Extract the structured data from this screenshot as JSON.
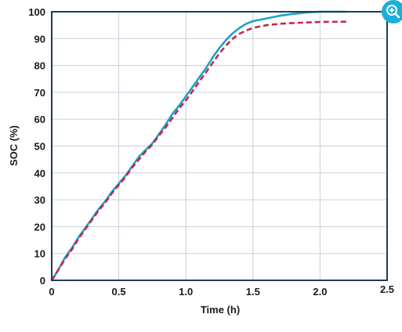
{
  "zoom_button": {
    "icon": "zoom-in-icon",
    "color": "#1ab0d8"
  },
  "chart_data": {
    "type": "line",
    "title": "",
    "xlabel": "Time (h)",
    "ylabel": "SOC (%)",
    "xlim": [
      0,
      2.5
    ],
    "ylim": [
      0,
      100
    ],
    "x_ticks": [
      0,
      0.5,
      1.0,
      1.5,
      2.0,
      2.5
    ],
    "x_tick_labels": [
      "0",
      "0.5",
      "1.0",
      "1.5",
      "2.0",
      "2.5"
    ],
    "y_ticks": [
      0,
      10,
      20,
      30,
      40,
      50,
      60,
      70,
      80,
      90,
      100
    ],
    "y_tick_labels": [
      "0",
      "10",
      "20",
      "30",
      "40",
      "50",
      "60",
      "70",
      "80",
      "90",
      "100"
    ],
    "grid": true,
    "colors": {
      "axis": "#1f3a5f",
      "grid": "#c7d0da"
    },
    "series": [
      {
        "style": "solid",
        "color": "#1ba3c6",
        "points": [
          [
            0,
            0
          ],
          [
            0.05,
            4
          ],
          [
            0.1,
            8.5
          ],
          [
            0.15,
            12
          ],
          [
            0.2,
            16
          ],
          [
            0.25,
            19.5
          ],
          [
            0.3,
            23
          ],
          [
            0.35,
            26.5
          ],
          [
            0.4,
            29.5
          ],
          [
            0.45,
            33
          ],
          [
            0.5,
            36
          ],
          [
            0.55,
            39
          ],
          [
            0.6,
            42.5
          ],
          [
            0.65,
            46
          ],
          [
            0.7,
            48.5
          ],
          [
            0.75,
            51
          ],
          [
            0.8,
            54.5
          ],
          [
            0.85,
            58
          ],
          [
            0.9,
            62
          ],
          [
            0.95,
            65
          ],
          [
            1.0,
            68.5
          ],
          [
            1.05,
            72
          ],
          [
            1.1,
            75.5
          ],
          [
            1.15,
            79
          ],
          [
            1.2,
            83
          ],
          [
            1.25,
            86.5
          ],
          [
            1.3,
            89.5
          ],
          [
            1.35,
            92
          ],
          [
            1.4,
            94
          ],
          [
            1.45,
            95.5
          ],
          [
            1.5,
            96.5
          ],
          [
            1.6,
            97.5
          ],
          [
            1.7,
            98.5
          ],
          [
            1.8,
            99.2
          ],
          [
            1.9,
            99.7
          ],
          [
            2.0,
            100
          ],
          [
            2.2,
            100
          ]
        ]
      },
      {
        "style": "dashed",
        "color": "#c8254a",
        "points": [
          [
            0,
            0
          ],
          [
            0.05,
            4
          ],
          [
            0.1,
            8
          ],
          [
            0.15,
            11.5
          ],
          [
            0.2,
            15.5
          ],
          [
            0.25,
            19
          ],
          [
            0.3,
            22.5
          ],
          [
            0.35,
            26
          ],
          [
            0.4,
            29
          ],
          [
            0.45,
            32.5
          ],
          [
            0.5,
            35.5
          ],
          [
            0.55,
            38.5
          ],
          [
            0.6,
            42
          ],
          [
            0.65,
            45
          ],
          [
            0.7,
            48
          ],
          [
            0.75,
            50.5
          ],
          [
            0.8,
            54
          ],
          [
            0.85,
            57
          ],
          [
            0.9,
            60.5
          ],
          [
            0.95,
            64
          ],
          [
            1.0,
            67
          ],
          [
            1.05,
            70.5
          ],
          [
            1.1,
            74
          ],
          [
            1.15,
            77.5
          ],
          [
            1.2,
            81
          ],
          [
            1.25,
            84.5
          ],
          [
            1.3,
            87.5
          ],
          [
            1.35,
            90
          ],
          [
            1.4,
            91.8
          ],
          [
            1.45,
            93
          ],
          [
            1.5,
            94
          ],
          [
            1.6,
            95
          ],
          [
            1.7,
            95.5
          ],
          [
            1.8,
            95.8
          ],
          [
            1.9,
            96
          ],
          [
            2.0,
            96.2
          ],
          [
            2.2,
            96.3
          ]
        ]
      }
    ]
  }
}
